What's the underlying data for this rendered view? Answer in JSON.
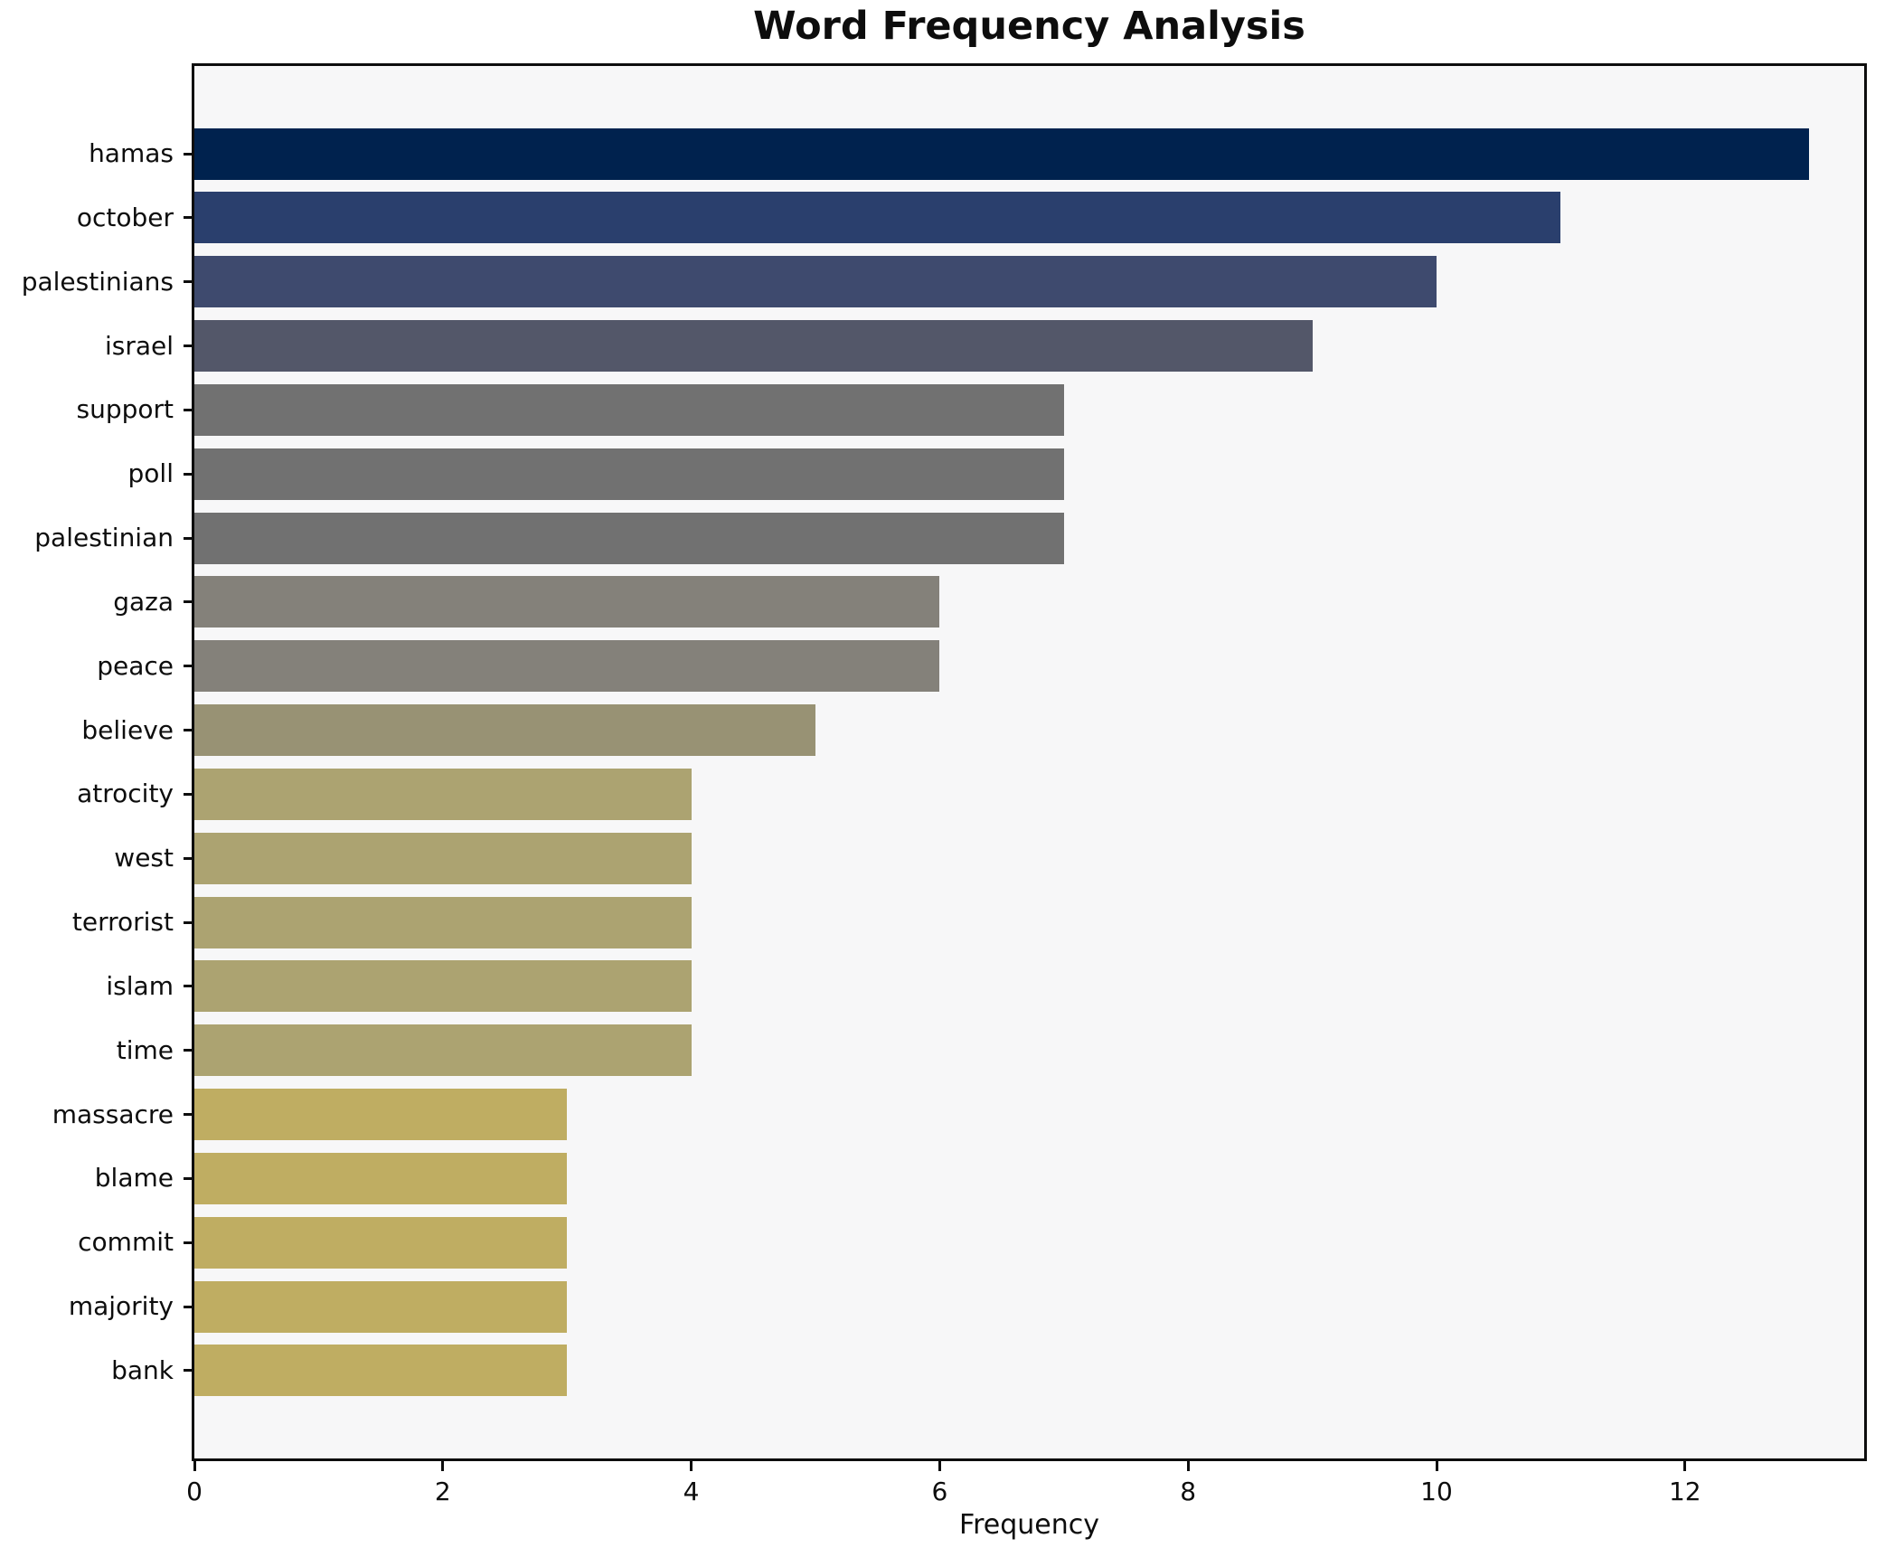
{
  "chart_data": {
    "type": "bar",
    "orientation": "horizontal",
    "title": "Word Frequency Analysis",
    "xlabel": "Frequency",
    "ylabel": "",
    "categories": [
      "hamas",
      "october",
      "palestinians",
      "israel",
      "support",
      "poll",
      "palestinian",
      "gaza",
      "peace",
      "believe",
      "atrocity",
      "west",
      "terrorist",
      "islam",
      "time",
      "massacre",
      "blame",
      "commit",
      "majority",
      "bank"
    ],
    "values": [
      13,
      11,
      10,
      9,
      7,
      7,
      7,
      6,
      6,
      5,
      4,
      4,
      4,
      4,
      4,
      3,
      3,
      3,
      3,
      3
    ],
    "bar_colors": [
      "#00224e",
      "#2a3f6d",
      "#3e4a6e",
      "#535769",
      "#717171",
      "#717171",
      "#717171",
      "#84817a",
      "#84817a",
      "#989274",
      "#aca371",
      "#aca371",
      "#aca371",
      "#aca371",
      "#aca371",
      "#bfad62",
      "#bfad62",
      "#bfad62",
      "#bfad62",
      "#bfad62"
    ],
    "x_ticks": [
      0,
      2,
      4,
      6,
      8,
      10,
      12
    ],
    "xlim": [
      0,
      13.4
    ],
    "grid": false,
    "legend": "none",
    "colors": {
      "plot_background": "#f7f7f8",
      "figure_background": "#ffffff",
      "axis_border": "#0d0d0d",
      "text": "#0d0d0d"
    }
  }
}
